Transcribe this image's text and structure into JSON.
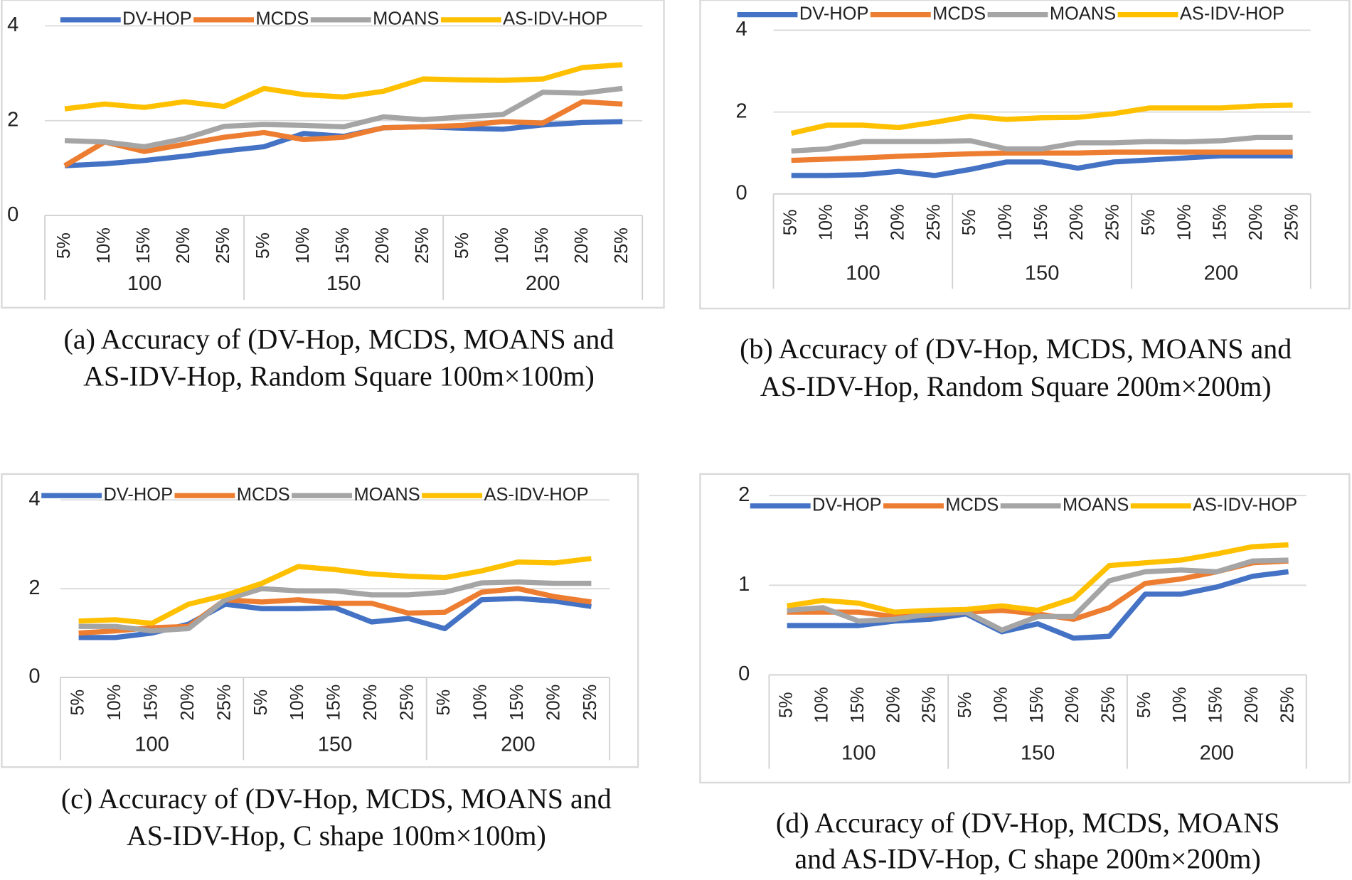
{
  "chart_data": [
    {
      "type": "line",
      "caption": [
        "(a) Accuracy of (DV-Hop, MCDS, MOANS and",
        "AS-IDV-Hop, Random Square 100m×100m)"
      ],
      "categories": [
        "5%",
        "10%",
        "15%",
        "20%",
        "25%",
        "5%",
        "10%",
        "15%",
        "20%",
        "25%",
        "5%",
        "10%",
        "15%",
        "20%",
        "25%"
      ],
      "groups": [
        "100",
        "150",
        "200"
      ],
      "ylim": [
        0,
        4
      ],
      "yticks": [
        0,
        2,
        4
      ],
      "grid": true,
      "series": [
        {
          "name": "DV-HOP",
          "color": "#4472c4",
          "values": [
            1.05,
            1.09,
            1.16,
            1.25,
            1.36,
            1.45,
            1.73,
            1.67,
            1.85,
            1.87,
            1.84,
            1.82,
            1.91,
            1.96,
            1.98
          ]
        },
        {
          "name": "MCDS",
          "color": "#ed7d31",
          "values": [
            1.05,
            1.55,
            1.35,
            1.5,
            1.65,
            1.75,
            1.6,
            1.65,
            1.85,
            1.87,
            1.9,
            1.98,
            1.95,
            2.4,
            2.35
          ]
        },
        {
          "name": "MOANS",
          "color": "#a5a5a5",
          "values": [
            1.58,
            1.55,
            1.45,
            1.62,
            1.88,
            1.92,
            1.9,
            1.87,
            2.08,
            2.02,
            2.08,
            2.13,
            2.6,
            2.58,
            2.68
          ]
        },
        {
          "name": "AS-IDV-HOP",
          "color": "#ffc000",
          "values": [
            2.25,
            2.35,
            2.28,
            2.4,
            2.3,
            2.68,
            2.55,
            2.5,
            2.62,
            2.88,
            2.86,
            2.85,
            2.88,
            3.12,
            3.18
          ]
        }
      ]
    },
    {
      "type": "line",
      "caption": [
        "(b) Accuracy of (DV-Hop, MCDS, MOANS and",
        "AS-IDV-Hop, Random Square 200m×200m)"
      ],
      "categories": [
        "5%",
        "10%",
        "15%",
        "20%",
        "25%",
        "5%",
        "10%",
        "15%",
        "20%",
        "25%",
        "5%",
        "10%",
        "15%",
        "20%",
        "25%"
      ],
      "groups": [
        "100",
        "150",
        "200"
      ],
      "ylim": [
        0,
        4
      ],
      "yticks": [
        0,
        2,
        4
      ],
      "grid": true,
      "series": [
        {
          "name": "DV-HOP",
          "color": "#4472c4",
          "values": [
            0.45,
            0.45,
            0.47,
            0.55,
            0.45,
            0.6,
            0.78,
            0.78,
            0.63,
            0.78,
            0.83,
            0.88,
            0.93,
            0.93,
            0.93
          ]
        },
        {
          "name": "MCDS",
          "color": "#ed7d31",
          "values": [
            0.82,
            0.85,
            0.88,
            0.92,
            0.95,
            0.98,
            1.0,
            1.0,
            1.0,
            1.02,
            1.02,
            1.02,
            1.02,
            1.02,
            1.02
          ]
        },
        {
          "name": "MOANS",
          "color": "#a5a5a5",
          "values": [
            1.05,
            1.1,
            1.28,
            1.28,
            1.28,
            1.3,
            1.1,
            1.1,
            1.25,
            1.25,
            1.28,
            1.27,
            1.3,
            1.38,
            1.38
          ]
        },
        {
          "name": "AS-IDV-HOP",
          "color": "#ffc000",
          "values": [
            1.48,
            1.68,
            1.68,
            1.62,
            1.75,
            1.9,
            1.82,
            1.86,
            1.87,
            1.96,
            2.1,
            2.1,
            2.1,
            2.15,
            2.17
          ]
        }
      ]
    },
    {
      "type": "line",
      "caption": [
        "(c) Accuracy of (DV-Hop, MCDS, MOANS and",
        "AS-IDV-Hop, C shape 100m×100m)"
      ],
      "categories": [
        "5%",
        "10%",
        "15%",
        "20%",
        "25%",
        "5%",
        "10%",
        "15%",
        "20%",
        "25%",
        "5%",
        "10%",
        "15%",
        "20%",
        "25%"
      ],
      "groups": [
        "100",
        "150",
        "200"
      ],
      "ylim": [
        0,
        4
      ],
      "yticks": [
        0,
        2,
        4
      ],
      "grid": true,
      "series": [
        {
          "name": "DV-HOP",
          "color": "#4472c4",
          "values": [
            0.9,
            0.9,
            1.0,
            1.2,
            1.65,
            1.55,
            1.55,
            1.57,
            1.25,
            1.33,
            1.1,
            1.75,
            1.78,
            1.72,
            1.6
          ]
        },
        {
          "name": "MCDS",
          "color": "#ed7d31",
          "values": [
            1.0,
            1.05,
            1.12,
            1.15,
            1.75,
            1.7,
            1.75,
            1.67,
            1.67,
            1.45,
            1.47,
            1.92,
            2.0,
            1.82,
            1.7
          ]
        },
        {
          "name": "MOANS",
          "color": "#a5a5a5",
          "values": [
            1.15,
            1.15,
            1.05,
            1.1,
            1.75,
            2.0,
            1.95,
            1.95,
            1.86,
            1.86,
            1.92,
            2.13,
            2.15,
            2.12,
            2.12
          ]
        },
        {
          "name": "AS-IDV-HOP",
          "color": "#ffc000",
          "values": [
            1.27,
            1.3,
            1.22,
            1.65,
            1.85,
            2.12,
            2.5,
            2.43,
            2.33,
            2.28,
            2.25,
            2.4,
            2.6,
            2.58,
            2.68
          ]
        }
      ]
    },
    {
      "type": "line",
      "caption": [
        "(d) Accuracy of (DV-Hop, MCDS, MOANS",
        "and AS-IDV-Hop, C shape 200m×200m)"
      ],
      "categories": [
        "5%",
        "10%",
        "15%",
        "20%",
        "25%",
        "5%",
        "10%",
        "15%",
        "20%",
        "25%",
        "5%",
        "10%",
        "15%",
        "20%",
        "25%"
      ],
      "groups": [
        "100",
        "150",
        "200"
      ],
      "ylim": [
        0,
        2
      ],
      "yticks": [
        0,
        1,
        2
      ],
      "grid": true,
      "series": [
        {
          "name": "DV-HOP",
          "color": "#4472c4",
          "values": [
            0.55,
            0.55,
            0.55,
            0.6,
            0.62,
            0.68,
            0.48,
            0.57,
            0.41,
            0.43,
            0.9,
            0.9,
            0.98,
            1.1,
            1.15
          ]
        },
        {
          "name": "MCDS",
          "color": "#ed7d31",
          "values": [
            0.7,
            0.7,
            0.7,
            0.65,
            0.67,
            0.7,
            0.72,
            0.68,
            0.62,
            0.75,
            1.02,
            1.07,
            1.15,
            1.25,
            1.27
          ]
        },
        {
          "name": "MOANS",
          "color": "#a5a5a5",
          "values": [
            0.72,
            0.75,
            0.6,
            0.62,
            0.68,
            0.7,
            0.5,
            0.65,
            0.65,
            1.05,
            1.15,
            1.17,
            1.15,
            1.27,
            1.28
          ]
        },
        {
          "name": "AS-IDV-HOP",
          "color": "#ffc000",
          "values": [
            0.77,
            0.83,
            0.8,
            0.7,
            0.72,
            0.73,
            0.77,
            0.72,
            0.85,
            1.22,
            1.25,
            1.28,
            1.35,
            1.43,
            1.45
          ]
        }
      ]
    }
  ]
}
